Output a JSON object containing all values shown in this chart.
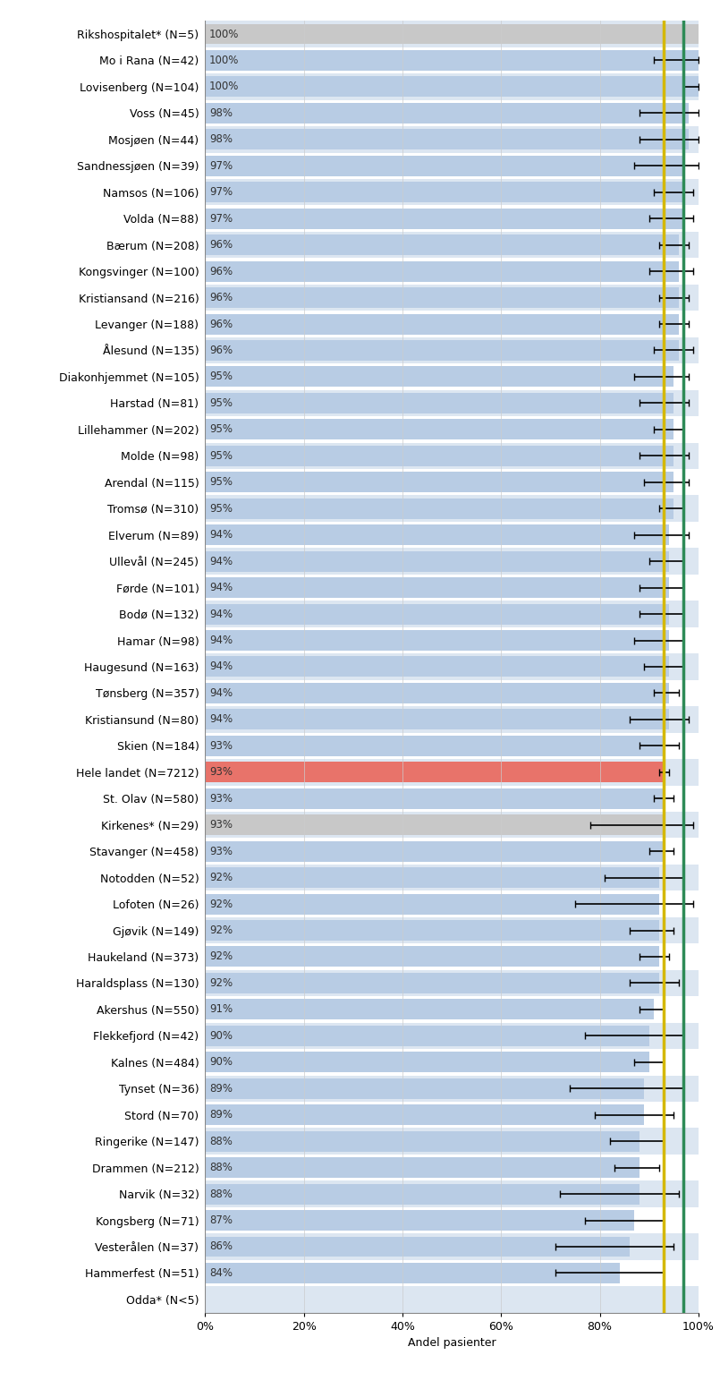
{
  "hospitals": [
    {
      "name": "Rikshospitalet* (N=5)",
      "value": 100,
      "ci_low": 100,
      "ci_high": 100,
      "color": "#c8c8c8"
    },
    {
      "name": "Mo i Rana (N=42)",
      "value": 100,
      "ci_low": 91,
      "ci_high": 100,
      "color": "#b8cce4"
    },
    {
      "name": "Lovisenberg (N=104)",
      "value": 100,
      "ci_low": 97,
      "ci_high": 100,
      "color": "#b8cce4"
    },
    {
      "name": "Voss (N=45)",
      "value": 98,
      "ci_low": 88,
      "ci_high": 100,
      "color": "#b8cce4"
    },
    {
      "name": "Mosjøen (N=44)",
      "value": 98,
      "ci_low": 88,
      "ci_high": 100,
      "color": "#b8cce4"
    },
    {
      "name": "Sandnessjøen (N=39)",
      "value": 97,
      "ci_low": 87,
      "ci_high": 100,
      "color": "#b8cce4"
    },
    {
      "name": "Namsos (N=106)",
      "value": 97,
      "ci_low": 91,
      "ci_high": 99,
      "color": "#b8cce4"
    },
    {
      "name": "Volda (N=88)",
      "value": 97,
      "ci_low": 90,
      "ci_high": 99,
      "color": "#b8cce4"
    },
    {
      "name": "Bærum (N=208)",
      "value": 96,
      "ci_low": 92,
      "ci_high": 98,
      "color": "#b8cce4"
    },
    {
      "name": "Kongsvinger (N=100)",
      "value": 96,
      "ci_low": 90,
      "ci_high": 99,
      "color": "#b8cce4"
    },
    {
      "name": "Kristiansand (N=216)",
      "value": 96,
      "ci_low": 92,
      "ci_high": 98,
      "color": "#b8cce4"
    },
    {
      "name": "Levanger (N=188)",
      "value": 96,
      "ci_low": 92,
      "ci_high": 98,
      "color": "#b8cce4"
    },
    {
      "name": "Ålesund (N=135)",
      "value": 96,
      "ci_low": 91,
      "ci_high": 99,
      "color": "#b8cce4"
    },
    {
      "name": "Diakonhjemmet (N=105)",
      "value": 95,
      "ci_low": 87,
      "ci_high": 98,
      "color": "#b8cce4"
    },
    {
      "name": "Harstad (N=81)",
      "value": 95,
      "ci_low": 88,
      "ci_high": 98,
      "color": "#b8cce4"
    },
    {
      "name": "Lillehammer (N=202)",
      "value": 95,
      "ci_low": 91,
      "ci_high": 97,
      "color": "#b8cce4"
    },
    {
      "name": "Molde (N=98)",
      "value": 95,
      "ci_low": 88,
      "ci_high": 98,
      "color": "#b8cce4"
    },
    {
      "name": "Arendal (N=115)",
      "value": 95,
      "ci_low": 89,
      "ci_high": 98,
      "color": "#b8cce4"
    },
    {
      "name": "Tromsø (N=310)",
      "value": 95,
      "ci_low": 92,
      "ci_high": 97,
      "color": "#b8cce4"
    },
    {
      "name": "Elverum (N=89)",
      "value": 94,
      "ci_low": 87,
      "ci_high": 98,
      "color": "#b8cce4"
    },
    {
      "name": "Ullevål (N=245)",
      "value": 94,
      "ci_low": 90,
      "ci_high": 97,
      "color": "#b8cce4"
    },
    {
      "name": "Førde (N=101)",
      "value": 94,
      "ci_low": 88,
      "ci_high": 97,
      "color": "#b8cce4"
    },
    {
      "name": "Bodø (N=132)",
      "value": 94,
      "ci_low": 88,
      "ci_high": 97,
      "color": "#b8cce4"
    },
    {
      "name": "Hamar (N=98)",
      "value": 94,
      "ci_low": 87,
      "ci_high": 97,
      "color": "#b8cce4"
    },
    {
      "name": "Haugesund (N=163)",
      "value": 94,
      "ci_low": 89,
      "ci_high": 97,
      "color": "#b8cce4"
    },
    {
      "name": "Tønsberg (N=357)",
      "value": 94,
      "ci_low": 91,
      "ci_high": 96,
      "color": "#b8cce4"
    },
    {
      "name": "Kristiansund (N=80)",
      "value": 94,
      "ci_low": 86,
      "ci_high": 98,
      "color": "#b8cce4"
    },
    {
      "name": "Skien (N=184)",
      "value": 93,
      "ci_low": 88,
      "ci_high": 96,
      "color": "#b8cce4"
    },
    {
      "name": "Hele landet (N=7212)",
      "value": 93,
      "ci_low": 92,
      "ci_high": 94,
      "color": "#e8736a"
    },
    {
      "name": "St. Olav (N=580)",
      "value": 93,
      "ci_low": 91,
      "ci_high": 95,
      "color": "#b8cce4"
    },
    {
      "name": "Kirkenes* (N=29)",
      "value": 93,
      "ci_low": 78,
      "ci_high": 99,
      "color": "#c8c8c8"
    },
    {
      "name": "Stavanger (N=458)",
      "value": 93,
      "ci_low": 90,
      "ci_high": 95,
      "color": "#b8cce4"
    },
    {
      "name": "Notodden (N=52)",
      "value": 92,
      "ci_low": 81,
      "ci_high": 97,
      "color": "#b8cce4"
    },
    {
      "name": "Lofoten (N=26)",
      "value": 92,
      "ci_low": 75,
      "ci_high": 99,
      "color": "#b8cce4"
    },
    {
      "name": "Gjøvik (N=149)",
      "value": 92,
      "ci_low": 86,
      "ci_high": 95,
      "color": "#b8cce4"
    },
    {
      "name": "Haukeland (N=373)",
      "value": 92,
      "ci_low": 88,
      "ci_high": 94,
      "color": "#b8cce4"
    },
    {
      "name": "Haraldsplass (N=130)",
      "value": 92,
      "ci_low": 86,
      "ci_high": 96,
      "color": "#b8cce4"
    },
    {
      "name": "Akershus (N=550)",
      "value": 91,
      "ci_low": 88,
      "ci_high": 93,
      "color": "#b8cce4"
    },
    {
      "name": "Flekkefjord (N=42)",
      "value": 90,
      "ci_low": 77,
      "ci_high": 97,
      "color": "#b8cce4"
    },
    {
      "name": "Kalnes (N=484)",
      "value": 90,
      "ci_low": 87,
      "ci_high": 93,
      "color": "#b8cce4"
    },
    {
      "name": "Tynset (N=36)",
      "value": 89,
      "ci_low": 74,
      "ci_high": 97,
      "color": "#b8cce4"
    },
    {
      "name": "Stord (N=70)",
      "value": 89,
      "ci_low": 79,
      "ci_high": 95,
      "color": "#b8cce4"
    },
    {
      "name": "Ringerike (N=147)",
      "value": 88,
      "ci_low": 82,
      "ci_high": 93,
      "color": "#b8cce4"
    },
    {
      "name": "Drammen (N=212)",
      "value": 88,
      "ci_low": 83,
      "ci_high": 92,
      "color": "#b8cce4"
    },
    {
      "name": "Narvik (N=32)",
      "value": 88,
      "ci_low": 72,
      "ci_high": 96,
      "color": "#b8cce4"
    },
    {
      "name": "Kongsberg (N=71)",
      "value": 87,
      "ci_low": 77,
      "ci_high": 93,
      "color": "#b8cce4"
    },
    {
      "name": "Vesterålen (N=37)",
      "value": 86,
      "ci_low": 71,
      "ci_high": 95,
      "color": "#b8cce4"
    },
    {
      "name": "Hammerfest (N=51)",
      "value": 84,
      "ci_low": 71,
      "ci_high": 93,
      "color": "#b8cce4"
    },
    {
      "name": "Odda* (N<5)",
      "value": 0,
      "ci_low": 0,
      "ci_high": 0,
      "color": "#b8cce4"
    }
  ],
  "ref_line_yellow": 93,
  "ref_line_green": 97,
  "xlabel": "Andel pasienter",
  "xmin": 0,
  "xmax": 100,
  "xticks": [
    0,
    20,
    40,
    60,
    80,
    100
  ],
  "xtick_labels": [
    "0%",
    "20%",
    "40%",
    "60%",
    "80%",
    "100%"
  ],
  "bar_height": 0.78,
  "bg_color": "#ffffff",
  "row_color_even": "#dce6f1",
  "row_color_odd": "#ffffff",
  "value_label_color": "#333333",
  "ref_yellow": "#d4b800",
  "ref_green": "#2e8b57",
  "font_size_labels": 9,
  "font_size_values": 8.5
}
